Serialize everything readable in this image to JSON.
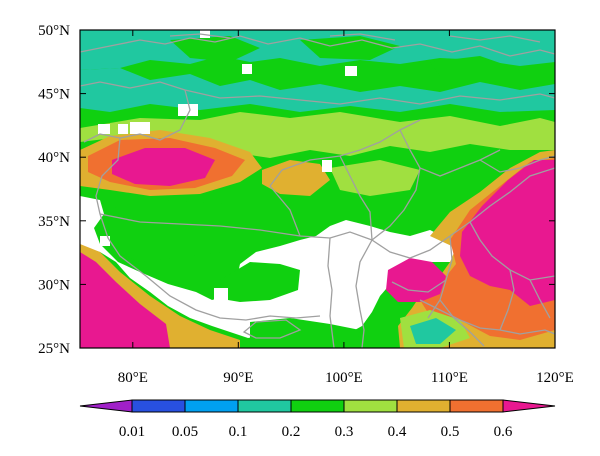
{
  "map": {
    "lat_labels": [
      "50°N",
      "45°N",
      "40°N",
      "35°N",
      "30°N",
      "25°N"
    ],
    "lon_labels": [
      "80°E",
      "90°E",
      "100°E",
      "110°E",
      "120°E"
    ],
    "lat_range": [
      25,
      50
    ],
    "lon_range": [
      75,
      120
    ],
    "boundary_color": "#a0a0a0",
    "regions": [
      {
        "name": "north-green",
        "class": 0.3
      },
      {
        "name": "tarim-high",
        "class": 0.6
      },
      {
        "name": "east-china-high",
        "class": 0.6
      },
      {
        "name": "southwest-high",
        "class": 0.6
      },
      {
        "name": "plateau-missing",
        "class": null
      }
    ]
  },
  "colorbar": {
    "labels": [
      "0.01",
      "0.05",
      "0.1",
      "0.2",
      "0.3",
      "0.4",
      "0.5",
      "0.6"
    ],
    "colors": [
      "#a020c8",
      "#2850e0",
      "#00a0f0",
      "#20c8a0",
      "#10d010",
      "#a0e040",
      "#e0b030",
      "#f07030",
      "#e81890"
    ]
  }
}
